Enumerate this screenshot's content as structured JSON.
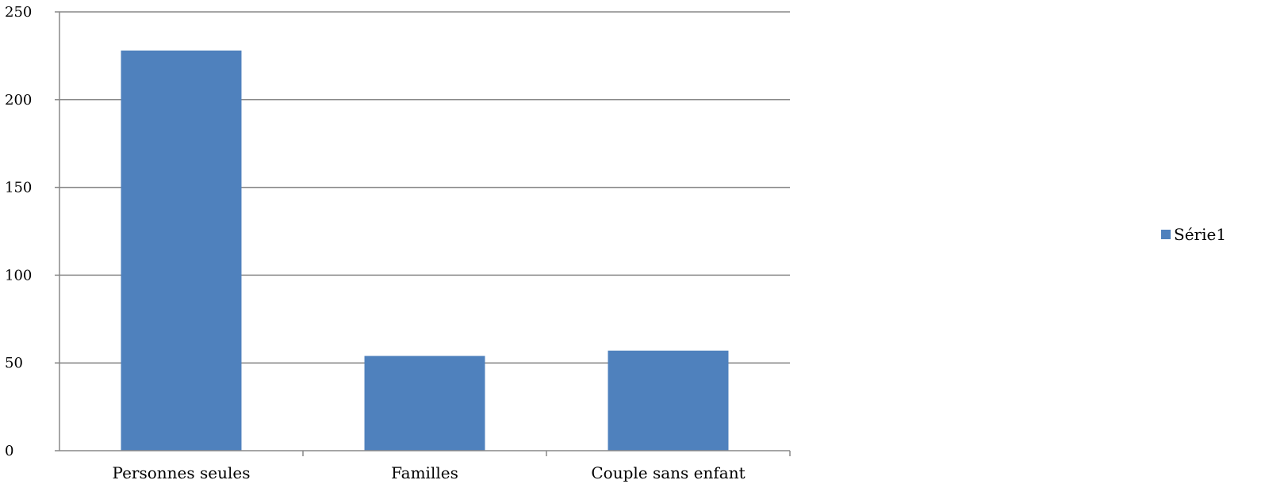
{
  "chart_data": {
    "type": "bar",
    "categories": [
      "Personnes seules",
      "Familles",
      "Couple sans enfant"
    ],
    "series": [
      {
        "name": "Série1",
        "values": [
          228,
          54,
          57
        ],
        "color": "#4F81BD"
      }
    ],
    "yticks": [
      0,
      50,
      100,
      150,
      200,
      250
    ],
    "ylim": [
      0,
      250
    ],
    "grid": true,
    "legend": "right"
  }
}
